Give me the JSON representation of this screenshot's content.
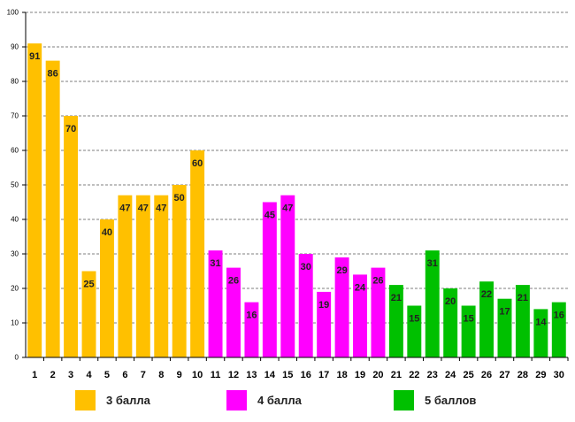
{
  "chart_data": {
    "type": "bar",
    "title": "",
    "xlabel": "",
    "ylabel": "",
    "ylim": [
      0,
      100
    ],
    "yticks": [
      0,
      10,
      20,
      30,
      40,
      50,
      60,
      70,
      80,
      90,
      100
    ],
    "grid": true,
    "categories": [
      "1",
      "2",
      "3",
      "4",
      "5",
      "6",
      "7",
      "8",
      "9",
      "10",
      "11",
      "12",
      "13",
      "14",
      "15",
      "16",
      "17",
      "18",
      "19",
      "20",
      "21",
      "22",
      "23",
      "24",
      "25",
      "26",
      "27",
      "28",
      "29",
      "30"
    ],
    "values": [
      91,
      86,
      70,
      25,
      40,
      47,
      47,
      47,
      50,
      60,
      31,
      26,
      16,
      45,
      47,
      30,
      19,
      29,
      24,
      26,
      21,
      15,
      31,
      20,
      15,
      22,
      17,
      21,
      14,
      16
    ],
    "groups": [
      0,
      0,
      0,
      0,
      0,
      0,
      0,
      0,
      0,
      0,
      1,
      1,
      1,
      1,
      1,
      1,
      1,
      1,
      1,
      1,
      2,
      2,
      2,
      2,
      2,
      2,
      2,
      2,
      2,
      2
    ],
    "legend": [
      {
        "label": "3 балла",
        "color": "#FFC000"
      },
      {
        "label": "4 балла",
        "color": "#FF00FF"
      },
      {
        "label": "5 баллов",
        "color": "#00C000"
      }
    ]
  }
}
